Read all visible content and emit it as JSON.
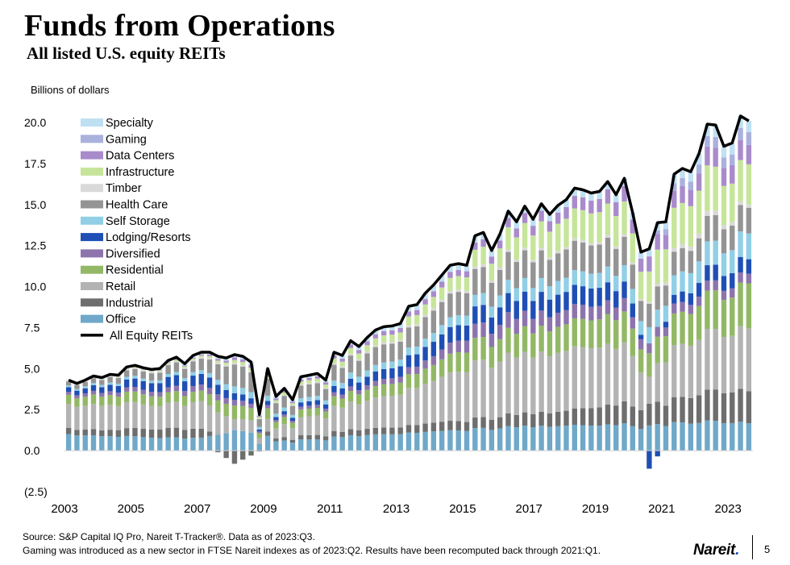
{
  "header": {
    "title": "Funds from Operations",
    "subtitle": "All listed U.S. equity REITs",
    "y_unit_label": "Billions of dollars"
  },
  "footer": {
    "source_line1": "Source: S&P Capital IQ Pro, Nareit T-Tracker®. Data as of 2023:Q3.",
    "source_line2": "Gaming was introduced as a new sector in FTSE Nareit indexes as of 2023:Q2. Results have been recomputed back through 2021:Q1.",
    "logo_text": "Nareit",
    "logo_dot": ".",
    "page_number": "5"
  },
  "chart_data": {
    "type": "bar",
    "stacked": true,
    "title": "Funds from Operations",
    "subtitle": "All listed U.S. equity REITs",
    "ylabel": "Billions of dollars",
    "ylim": [
      -2.5,
      20.0
    ],
    "yticks": [
      20.0,
      17.5,
      15.0,
      12.5,
      10.0,
      7.5,
      5.0,
      2.5,
      0.0,
      -2.5
    ],
    "ytick_labels": [
      "20.0",
      "17.5",
      "15.0",
      "12.5",
      "10.0",
      "7.5",
      "5.0",
      "2.5",
      "0.0",
      "(2.5)"
    ],
    "xtick_labels": [
      "2003",
      "2005",
      "2007",
      "2009",
      "2011",
      "2013",
      "2015",
      "2017",
      "2019",
      "2021",
      "2023"
    ],
    "start_quarter": "2003:Q1",
    "end_quarter": "2023:Q3",
    "legend_position": "top-left",
    "colors": {
      "Office": "#6fa8c8",
      "Industrial": "#6e6e6e",
      "Retail": "#b3b3b3",
      "Residential": "#92b866",
      "Diversified": "#8d74ad",
      "Lodging/Resorts": "#1f4fb5",
      "Self Storage": "#90cfe6",
      "Health Care": "#949494",
      "Timber": "#d9d9d9",
      "Infrastructure": "#c6e59a",
      "Data Centers": "#a98bcc",
      "Gaming": "#aab1dd",
      "Specialty": "#bfe0f2",
      "All Equity REITs": "#000000"
    },
    "legend": [
      "Specialty",
      "Gaming",
      "Data Centers",
      "Infrastructure",
      "Timber",
      "Health Care",
      "Self Storage",
      "Lodging/Resorts",
      "Diversified",
      "Residential",
      "Retail",
      "Industrial",
      "Office",
      "All Equity REITs"
    ],
    "stack_order": [
      "Office",
      "Industrial",
      "Retail",
      "Residential",
      "Diversified",
      "Lodging/Resorts",
      "Self Storage",
      "Health Care",
      "Timber",
      "Infrastructure",
      "Data Centers",
      "Gaming",
      "Specialty"
    ],
    "line_series": "All Equity REITs",
    "anchor_quarters": [
      0,
      4,
      8,
      12,
      16,
      20,
      24,
      28,
      32,
      36,
      40,
      44,
      48,
      52,
      56,
      60,
      64,
      68,
      69,
      70,
      72,
      76,
      80,
      82
    ],
    "anchor_series": {
      "Office": [
        1.1,
        1.0,
        0.95,
        0.9,
        0.85,
        0.75,
        0.7,
        0.8,
        0.9,
        1.0,
        1.1,
        1.2,
        1.3,
        1.4,
        1.45,
        1.5,
        1.5,
        1.6,
        1.5,
        1.5,
        1.7,
        1.8,
        1.8,
        1.7
      ],
      "Industrial": [
        0.4,
        0.4,
        0.55,
        0.65,
        0.6,
        -0.8,
        0.2,
        0.3,
        0.35,
        0.4,
        0.45,
        0.55,
        0.6,
        0.7,
        0.8,
        0.9,
        1.1,
        1.3,
        1.3,
        1.3,
        1.4,
        1.8,
        2.0,
        2.0
      ],
      "Retail": [
        1.6,
        1.7,
        1.7,
        1.7,
        1.8,
        0.4,
        0.6,
        1.3,
        1.6,
        1.8,
        2.2,
        2.6,
        3.3,
        3.5,
        3.5,
        3.6,
        3.6,
        3.3,
        2.6,
        1.6,
        3.0,
        3.6,
        3.7,
        3.9
      ],
      "Residential": [
        0.6,
        0.65,
        0.7,
        0.7,
        0.7,
        0.5,
        0.5,
        0.55,
        0.6,
        0.7,
        0.8,
        1.0,
        1.3,
        1.4,
        1.5,
        1.6,
        1.7,
        1.8,
        1.6,
        1.4,
        1.8,
        2.2,
        2.5,
        2.8
      ],
      "Diversified": [
        0.2,
        0.25,
        0.3,
        0.35,
        0.4,
        0.2,
        0.15,
        0.2,
        0.25,
        0.3,
        0.4,
        0.55,
        0.8,
        0.9,
        0.9,
        0.85,
        0.8,
        0.75,
        0.7,
        0.6,
        0.6,
        0.6,
        0.6,
        0.6
      ],
      "Lodging/Resorts": [
        0.3,
        0.4,
        0.55,
        0.7,
        0.7,
        0.25,
        0.2,
        0.3,
        0.4,
        0.55,
        0.7,
        0.9,
        1.0,
        1.1,
        1.1,
        1.1,
        1.1,
        0.9,
        0.3,
        -1.1,
        0.4,
        0.9,
        1.0,
        0.9
      ],
      "Self Storage": [
        0.12,
        0.15,
        0.18,
        0.2,
        0.25,
        0.25,
        0.25,
        0.3,
        0.35,
        0.4,
        0.45,
        0.55,
        0.65,
        0.75,
        0.8,
        0.85,
        0.9,
        0.95,
        0.95,
        0.95,
        1.1,
        1.4,
        1.5,
        1.6
      ],
      "Health Care": [
        0.25,
        0.35,
        0.45,
        0.6,
        0.75,
        0.8,
        0.8,
        0.9,
        1.0,
        1.1,
        1.2,
        1.4,
        1.5,
        1.6,
        1.6,
        1.7,
        1.7,
        1.6,
        1.4,
        1.4,
        1.4,
        1.5,
        1.6,
        1.6
      ],
      "Timber": [
        0.05,
        0.06,
        0.07,
        0.08,
        0.1,
        0.06,
        0.06,
        0.08,
        0.1,
        0.12,
        0.12,
        0.15,
        0.15,
        0.15,
        0.15,
        0.15,
        0.15,
        0.15,
        0.12,
        0.12,
        0.2,
        0.3,
        0.25,
        0.2
      ],
      "Infrastructure": [
        0.0,
        0.02,
        0.05,
        0.08,
        0.1,
        0.1,
        0.15,
        0.2,
        0.3,
        0.4,
        0.5,
        0.7,
        0.9,
        1.2,
        1.5,
        1.7,
        1.8,
        1.9,
        1.9,
        1.8,
        2.3,
        2.8,
        2.5,
        2.5
      ],
      "Data Centers": [
        0.0,
        0.0,
        0.02,
        0.04,
        0.08,
        0.1,
        0.12,
        0.15,
        0.2,
        0.25,
        0.3,
        0.35,
        0.4,
        0.5,
        0.6,
        0.7,
        0.8,
        0.9,
        0.9,
        0.9,
        1.0,
        1.1,
        1.2,
        1.2
      ],
      "Gaming": [
        0,
        0,
        0,
        0,
        0,
        0,
        0,
        0,
        0,
        0,
        0,
        0,
        0,
        0,
        0,
        0,
        0,
        0,
        0,
        0,
        0.4,
        0.6,
        0.7,
        0.8
      ],
      "Specialty": [
        0.05,
        0.08,
        0.1,
        0.12,
        0.15,
        0.1,
        0.15,
        0.2,
        0.2,
        0.25,
        0.3,
        0.4,
        0.4,
        0.4,
        0.4,
        0.45,
        0.45,
        0.45,
        0.45,
        0.45,
        0.5,
        0.7,
        0.75,
        0.7
      ]
    },
    "all_equity_reits": [
      4.3,
      4.1,
      4.3,
      4.55,
      4.45,
      4.65,
      4.6,
      5.1,
      5.2,
      5.05,
      4.95,
      5.0,
      5.5,
      5.7,
      5.3,
      5.8,
      6.0,
      6.0,
      5.75,
      5.65,
      5.85,
      5.75,
      5.4,
      2.2,
      5.0,
      3.3,
      3.8,
      3.1,
      4.5,
      4.6,
      4.7,
      4.3,
      6.0,
      5.8,
      6.7,
      6.35,
      6.9,
      7.35,
      7.55,
      7.6,
      7.75,
      8.8,
      8.9,
      9.6,
      10.1,
      10.7,
      11.3,
      11.4,
      11.3,
      13.1,
      13.3,
      12.2,
      13.2,
      14.6,
      13.95,
      14.9,
      14.1,
      15.05,
      14.4,
      14.95,
      15.3,
      16.0,
      15.9,
      15.7,
      15.8,
      16.4,
      15.6,
      16.6,
      14.5,
      12.1,
      12.3,
      13.9,
      13.95,
      16.85,
      17.2,
      17.0,
      18.1,
      19.9,
      19.85,
      18.55,
      18.75,
      20.4,
      20.1
    ]
  }
}
